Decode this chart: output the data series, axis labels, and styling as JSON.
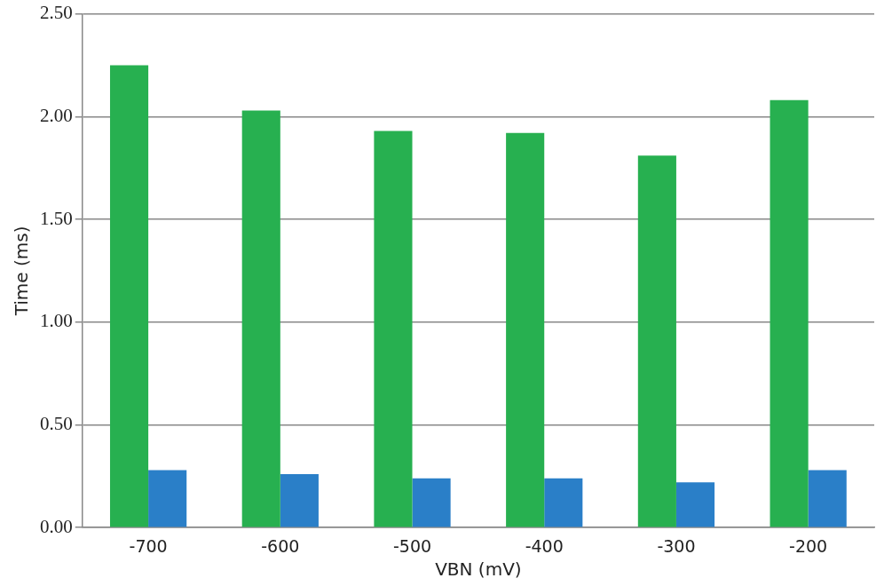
{
  "chart_data": {
    "type": "bar",
    "xlabel": "VBN (mV)",
    "ylabel": "Time (ms)",
    "categories": [
      "-700",
      "-600",
      "-500",
      "-400",
      "-300",
      "-200"
    ],
    "series": [
      {
        "color": "#27b050",
        "values": [
          2.25,
          2.03,
          1.93,
          1.92,
          1.81,
          2.08
        ]
      },
      {
        "color": "#2a7fc8",
        "values": [
          0.28,
          0.26,
          0.24,
          0.24,
          0.22,
          0.28
        ]
      }
    ],
    "ylim": [
      0,
      2.5
    ],
    "yticks": [
      {
        "value": 0,
        "label": "0.00"
      },
      {
        "value": 0.5,
        "label": "0.50"
      },
      {
        "value": 1,
        "label": "1.00"
      },
      {
        "value": 1.5,
        "label": "1.50"
      },
      {
        "value": 2,
        "label": "2.00"
      },
      {
        "value": 2.5,
        "label": "2.50"
      }
    ],
    "grid": "y"
  }
}
